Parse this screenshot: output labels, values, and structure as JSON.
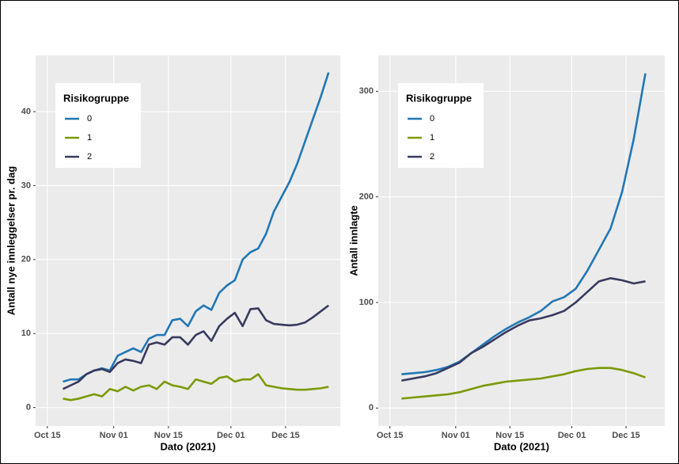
{
  "chart_data": [
    {
      "type": "line",
      "xlabel": "Dato (2021)",
      "ylabel": "Antall nye innleggelser pr. dag",
      "legend_title": "Risikogruppe",
      "legend": "top-left",
      "grid": true,
      "x": [
        "Oct 19",
        "Oct 21",
        "Oct 23",
        "Oct 25",
        "Oct 27",
        "Oct 29",
        "Oct 31",
        "Nov 02",
        "Nov 04",
        "Nov 06",
        "Nov 08",
        "Nov 10",
        "Nov 12",
        "Nov 14",
        "Nov 16",
        "Nov 18",
        "Nov 20",
        "Nov 22",
        "Nov 24",
        "Nov 26",
        "Nov 28",
        "Nov 30",
        "Dec 02",
        "Dec 04",
        "Dec 06",
        "Dec 08",
        "Dec 10",
        "Dec 12",
        "Dec 14",
        "Dec 16",
        "Dec 18",
        "Dec 20",
        "Dec 22",
        "Dec 24",
        "Dec 26"
      ],
      "series": [
        {
          "name": "0",
          "color": "#2177b5",
          "values": [
            3.5,
            3.8,
            3.8,
            4.5,
            5.0,
            5.3,
            5.0,
            7.0,
            7.5,
            8.0,
            7.5,
            9.3,
            9.8,
            9.8,
            11.8,
            12.0,
            11.0,
            13.0,
            13.8,
            13.2,
            15.5,
            16.5,
            17.2,
            20.0,
            21.0,
            21.5,
            23.5,
            26.5,
            28.5,
            30.5,
            33.0,
            36.0,
            39.0,
            42.0,
            45.3
          ]
        },
        {
          "name": "1",
          "color": "#7a9a06",
          "values": [
            1.2,
            1.0,
            1.2,
            1.5,
            1.8,
            1.5,
            2.5,
            2.2,
            2.8,
            2.3,
            2.8,
            3.0,
            2.5,
            3.5,
            3.0,
            2.8,
            2.5,
            3.8,
            3.5,
            3.2,
            4.0,
            4.2,
            3.5,
            3.8,
            3.8,
            4.5,
            3.0,
            2.8,
            2.6,
            2.5,
            2.4,
            2.4,
            2.5,
            2.6,
            2.8
          ]
        },
        {
          "name": "2",
          "color": "#383a5e",
          "values": [
            2.5,
            3.0,
            3.5,
            4.5,
            5.0,
            5.2,
            4.8,
            6.0,
            6.5,
            6.3,
            6.0,
            8.5,
            8.8,
            8.5,
            9.5,
            9.5,
            8.5,
            9.8,
            10.3,
            9.0,
            11.0,
            12.0,
            12.8,
            11.0,
            13.3,
            13.4,
            11.8,
            11.3,
            11.2,
            11.1,
            11.2,
            11.5,
            12.2,
            13.0,
            13.8
          ]
        }
      ],
      "xlim": [
        "Oct 12",
        "Dec 29"
      ],
      "xticks": [
        "Oct 15",
        "Nov 01",
        "Nov 15",
        "Dec 01",
        "Dec 15"
      ],
      "ylim": [
        -2.5,
        47.6
      ],
      "yticks": [
        0,
        10,
        20,
        30,
        40
      ]
    },
    {
      "type": "line",
      "xlabel": "Dato (2021)",
      "ylabel": "Antall innlagte",
      "legend_title": "Risikogruppe",
      "legend": "top-left",
      "grid": true,
      "x": [
        "Oct 18",
        "Oct 21",
        "Oct 24",
        "Oct 27",
        "Oct 30",
        "Nov 02",
        "Nov 05",
        "Nov 08",
        "Nov 11",
        "Nov 14",
        "Nov 17",
        "Nov 20",
        "Nov 23",
        "Nov 26",
        "Nov 29",
        "Dec 02",
        "Dec 05",
        "Dec 08",
        "Dec 11",
        "Dec 14",
        "Dec 17",
        "Dec 20"
      ],
      "series": [
        {
          "name": "0",
          "color": "#2177b5",
          "values": [
            32,
            33,
            34,
            36,
            39,
            44,
            52,
            60,
            68,
            75,
            81,
            86,
            92,
            101,
            105,
            113,
            130,
            150,
            170,
            205,
            255,
            317
          ]
        },
        {
          "name": "1",
          "color": "#7a9a06",
          "values": [
            9,
            10,
            11,
            12,
            13,
            15,
            18,
            21,
            23,
            25,
            26,
            27,
            28,
            30,
            32,
            35,
            37,
            38,
            38,
            36,
            33,
            29
          ]
        },
        {
          "name": "2",
          "color": "#383a5e",
          "values": [
            26,
            28,
            30,
            33,
            38,
            43,
            52,
            58,
            65,
            72,
            78,
            83,
            85,
            88,
            92,
            100,
            110,
            120,
            123,
            121,
            118,
            120
          ]
        }
      ],
      "xlim": [
        "Oct 12",
        "Dec 25"
      ],
      "xticks": [
        "Oct 15",
        "Nov 01",
        "Nov 15",
        "Dec 01",
        "Dec 15"
      ],
      "ylim": [
        -17,
        334
      ],
      "yticks": [
        0,
        100,
        200,
        300
      ]
    }
  ]
}
